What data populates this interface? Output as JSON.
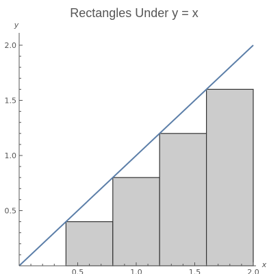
{
  "chart_data": {
    "type": "bar",
    "title": "Rectangles Under y = x",
    "xlabel": "x",
    "ylabel": "y",
    "xlim": [
      0,
      2.0
    ],
    "ylim": [
      0,
      2.0
    ],
    "x_ticks": [
      "0.5",
      "1.0",
      "1.5",
      "2.0"
    ],
    "y_ticks": [
      "0.5",
      "1.0",
      "1.5",
      "2.0"
    ],
    "bars": [
      {
        "x_start": 0.4,
        "x_end": 0.8,
        "height": 0.4
      },
      {
        "x_start": 0.8,
        "x_end": 1.2,
        "height": 0.8
      },
      {
        "x_start": 1.2,
        "x_end": 1.6,
        "height": 1.2
      },
      {
        "x_start": 1.6,
        "x_end": 2.0,
        "height": 1.6
      }
    ],
    "line": {
      "points": [
        [
          0,
          0
        ],
        [
          2.0,
          2.0
        ]
      ]
    },
    "colors": {
      "bar_fill": "#cccccc",
      "bar_stroke": "#333333",
      "line": "#5b7ea8"
    }
  }
}
